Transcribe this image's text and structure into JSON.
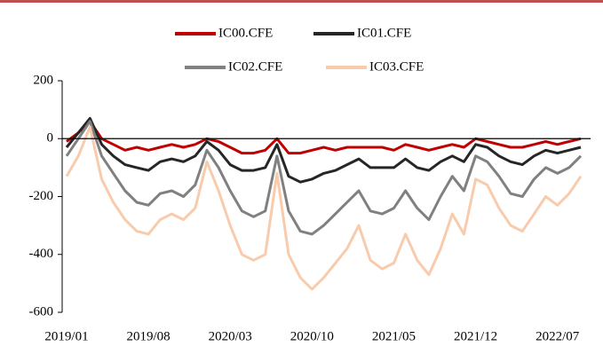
{
  "chart_data": {
    "type": "line",
    "categories": [
      "2019/01",
      null,
      null,
      null,
      null,
      null,
      null,
      "2019/08",
      null,
      null,
      null,
      null,
      null,
      null,
      "2020/03",
      null,
      null,
      null,
      null,
      null,
      null,
      "2020/10",
      null,
      null,
      null,
      null,
      null,
      null,
      "2021/05",
      null,
      null,
      null,
      null,
      null,
      null,
      "2021/12",
      null,
      null,
      null,
      null,
      null,
      null,
      "2022/07",
      null,
      null
    ],
    "series": [
      {
        "name": "IC00.CFE",
        "color": "#c00000",
        "values": [
          -10,
          20,
          60,
          0,
          -20,
          -40,
          -30,
          -40,
          -30,
          -20,
          -30,
          -20,
          0,
          -10,
          -30,
          -50,
          -50,
          -40,
          0,
          -50,
          -50,
          -40,
          -30,
          -40,
          -30,
          -30,
          -30,
          -30,
          -40,
          -20,
          -30,
          -40,
          -30,
          -20,
          -30,
          0,
          -10,
          -20,
          -30,
          -30,
          -20,
          -10,
          -20,
          -10,
          0
        ]
      },
      {
        "name": "IC01.CFE",
        "color": "#262626",
        "values": [
          -30,
          20,
          70,
          -20,
          -60,
          -90,
          -100,
          -110,
          -80,
          -70,
          -80,
          -60,
          -10,
          -40,
          -90,
          -110,
          -110,
          -100,
          -20,
          -130,
          -150,
          -140,
          -120,
          -110,
          -90,
          -70,
          -100,
          -100,
          -100,
          -70,
          -100,
          -110,
          -80,
          -60,
          -80,
          -20,
          -30,
          -60,
          -80,
          -90,
          -60,
          -40,
          -50,
          -40,
          -30
        ]
      },
      {
        "name": "IC02.CFE",
        "color": "#808080",
        "values": [
          -60,
          0,
          60,
          -60,
          -120,
          -180,
          -220,
          -230,
          -190,
          -180,
          -200,
          -160,
          -40,
          -100,
          -180,
          -250,
          -270,
          -250,
          -60,
          -250,
          -320,
          -330,
          -300,
          -260,
          -220,
          -180,
          -250,
          -260,
          -240,
          -180,
          -240,
          -280,
          -200,
          -130,
          -180,
          -60,
          -80,
          -130,
          -190,
          -200,
          -140,
          -100,
          -120,
          -100,
          -60
        ]
      },
      {
        "name": "IC03.CFE",
        "color": "#f8cbad",
        "values": [
          -130,
          -60,
          40,
          -140,
          -220,
          -280,
          -320,
          -330,
          -280,
          -260,
          -280,
          -240,
          -80,
          -180,
          -300,
          -400,
          -420,
          -400,
          -120,
          -400,
          -480,
          -520,
          -480,
          -430,
          -380,
          -300,
          -420,
          -450,
          -430,
          -330,
          -420,
          -470,
          -380,
          -260,
          -330,
          -140,
          -160,
          -240,
          -300,
          -320,
          -260,
          -200,
          -230,
          -190,
          -130
        ]
      }
    ],
    "ylim": [
      -600,
      200
    ],
    "yticks": [
      -600,
      -400,
      -200,
      0,
      200
    ],
    "grid": false
  }
}
